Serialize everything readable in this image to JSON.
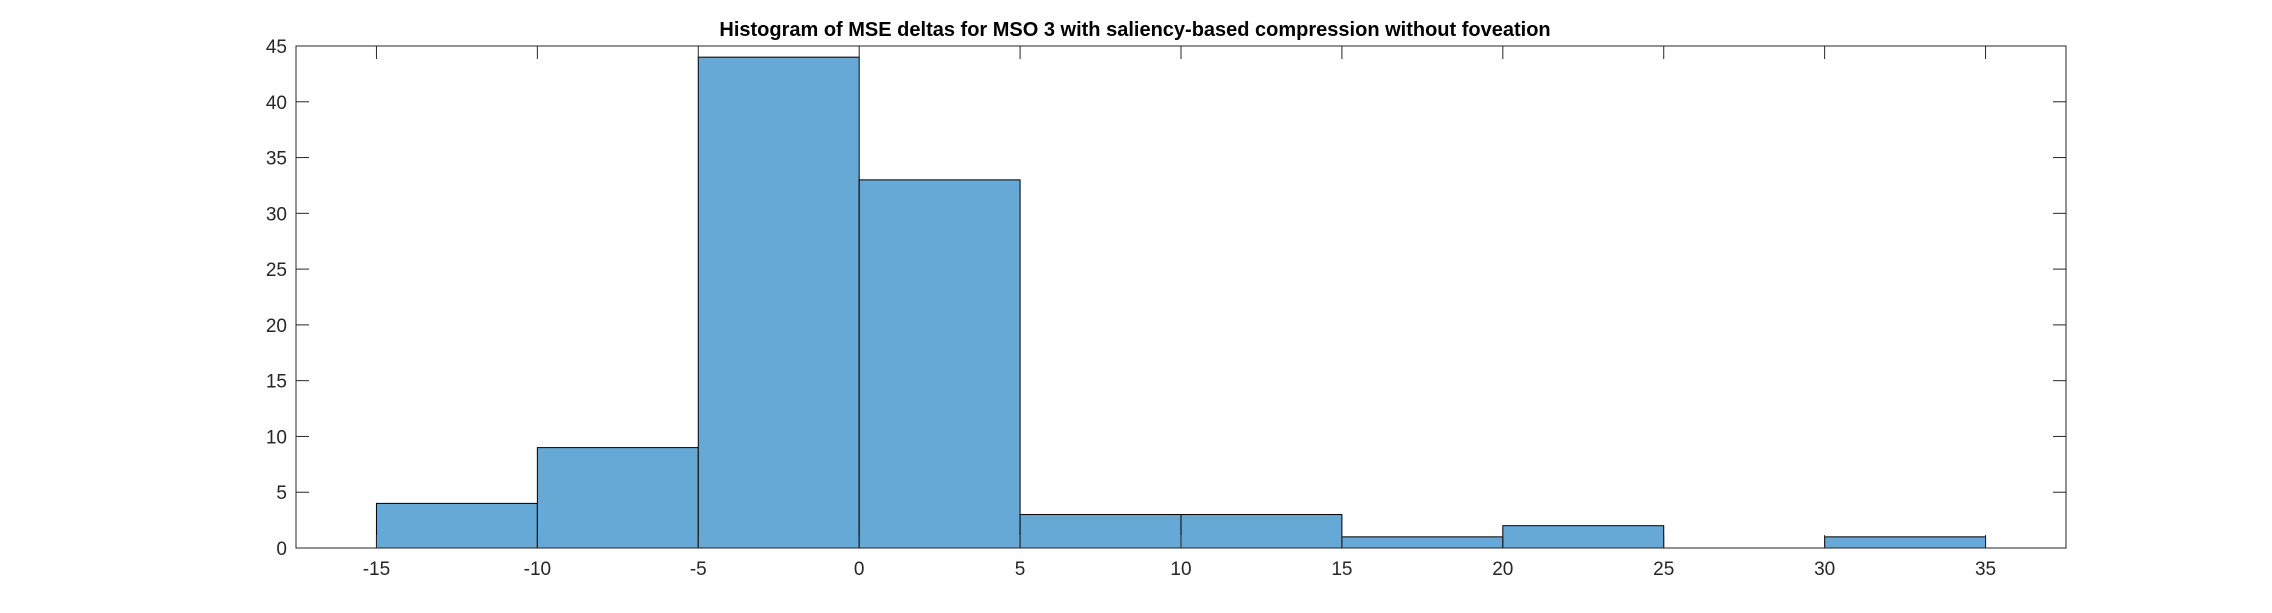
{
  "chart_data": {
    "type": "bar",
    "title": "Histogram of MSE deltas for MSO 3 with saliency-based compression without foveation",
    "xlabel": "",
    "ylabel": "",
    "bin_edges": [
      -15,
      -10,
      -5,
      0,
      5,
      10,
      15,
      20,
      25,
      30,
      35
    ],
    "counts": [
      4,
      9,
      44,
      33,
      3,
      3,
      1,
      2,
      0,
      1
    ],
    "xlim": [
      -17.5,
      37.5
    ],
    "ylim": [
      0,
      45
    ],
    "xticks": [
      -15,
      -10,
      -5,
      0,
      5,
      10,
      15,
      20,
      25,
      30,
      35
    ],
    "yticks": [
      0,
      5,
      10,
      15,
      20,
      25,
      30,
      35,
      40,
      45
    ],
    "bar_color": "#66A9D7",
    "edge_color": "#000000",
    "grid": false,
    "box": true
  }
}
